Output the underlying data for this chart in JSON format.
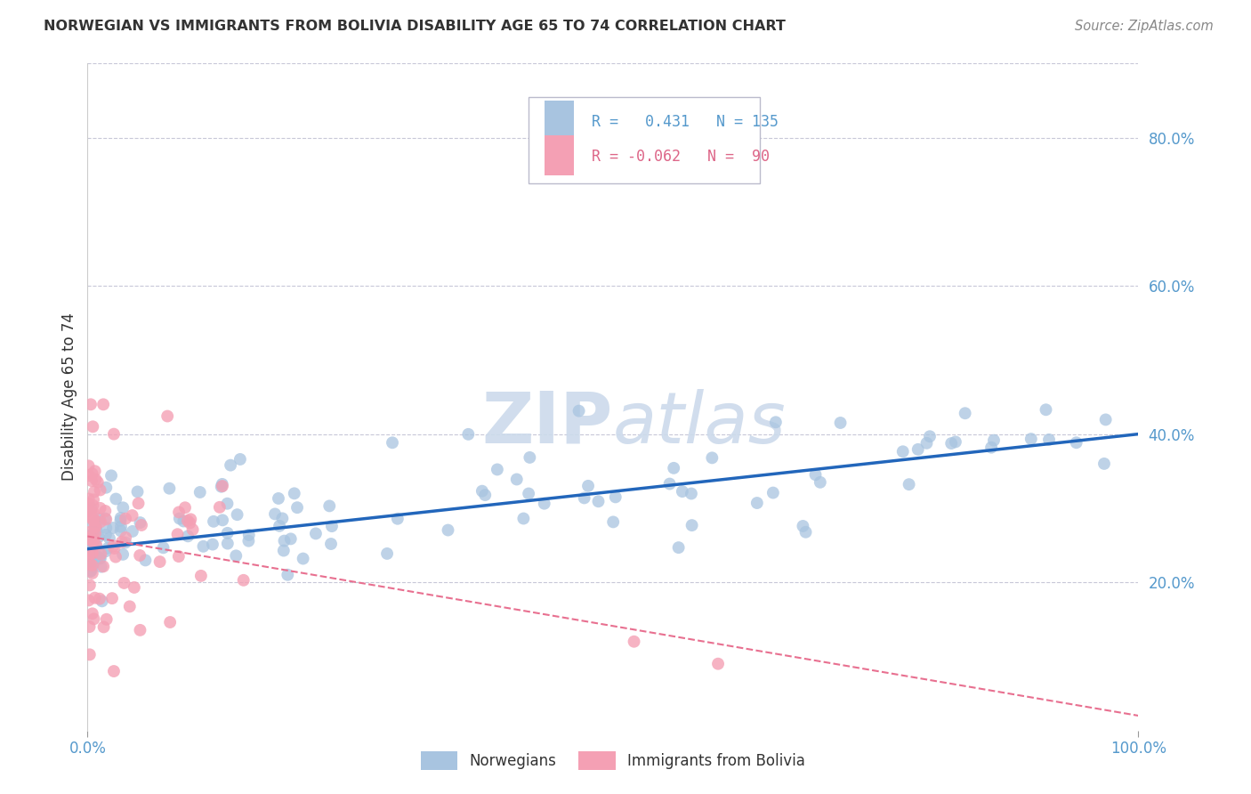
{
  "title": "NORWEGIAN VS IMMIGRANTS FROM BOLIVIA DISABILITY AGE 65 TO 74 CORRELATION CHART",
  "source": "Source: ZipAtlas.com",
  "ylabel": "Disability Age 65 to 74",
  "xlim": [
    0,
    1.0
  ],
  "ylim": [
    0,
    0.9
  ],
  "y_tick_positions": [
    0.2,
    0.4,
    0.6,
    0.8
  ],
  "norwegian_R": 0.431,
  "norwegian_N": 135,
  "bolivia_R": -0.062,
  "bolivia_N": 90,
  "norwegian_color": "#a8c4e0",
  "norwegian_line_color": "#2266bb",
  "bolivia_color": "#f4a0b4",
  "bolivia_line_color": "#e87090",
  "background_color": "#ffffff",
  "grid_color": "#c8c8d8",
  "watermark_color": "#ccdaeb",
  "nor_line_x0": 0.0,
  "nor_line_y0": 0.245,
  "nor_line_x1": 1.0,
  "nor_line_y1": 0.4,
  "bol_line_x0": 0.0,
  "bol_line_y0": 0.262,
  "bol_line_x1": 1.0,
  "bol_line_y1": 0.02
}
